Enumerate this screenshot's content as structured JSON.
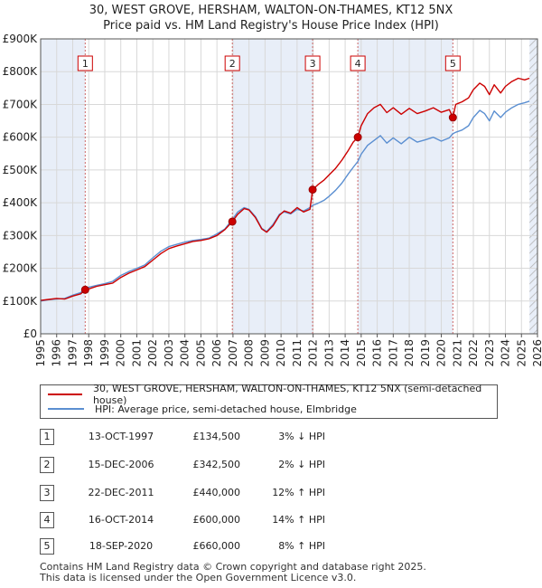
{
  "title_line1": "30, WEST GROVE, HERSHAM, WALTON-ON-THAMES, KT12 5NX",
  "title_line2": "Price paid vs. HM Land Registry's House Price Index (HPI)",
  "chart_data": {
    "type": "line",
    "title": "30, WEST GROVE, HERSHAM, WALTON-ON-THAMES, KT12 5NX",
    "subtitle": "Price paid vs. HM Land Registry's House Price Index (HPI)",
    "xlim": [
      1995,
      2026
    ],
    "ylim": [
      0,
      900000
    ],
    "x_ticks": [
      "1995",
      "1996",
      "1997",
      "1998",
      "1999",
      "2000",
      "2001",
      "2002",
      "2003",
      "2004",
      "2005",
      "2006",
      "2007",
      "2008",
      "2009",
      "2010",
      "2011",
      "2012",
      "2013",
      "2014",
      "2015",
      "2016",
      "2017",
      "2018",
      "2019",
      "2020",
      "2021",
      "2022",
      "2023",
      "2024",
      "2025",
      "2026"
    ],
    "y_ticks": [
      {
        "value": 0,
        "label": "£0"
      },
      {
        "value": 100000,
        "label": "£100K"
      },
      {
        "value": 200000,
        "label": "£200K"
      },
      {
        "value": 300000,
        "label": "£300K"
      },
      {
        "value": 400000,
        "label": "£400K"
      },
      {
        "value": 500000,
        "label": "£500K"
      },
      {
        "value": 600000,
        "label": "£600K"
      },
      {
        "value": 700000,
        "label": "£700K"
      },
      {
        "value": 800000,
        "label": "£800K"
      },
      {
        "value": 900000,
        "label": "£900K"
      }
    ],
    "series": [
      {
        "name": "30, WEST GROVE, HERSHAM, WALTON-ON-THAMES, KT12 5NX (semi-detached house)",
        "color": "#cc0000",
        "points": [
          [
            1995.0,
            102000
          ],
          [
            1995.5,
            105000
          ],
          [
            1996.0,
            108000
          ],
          [
            1996.5,
            106000
          ],
          [
            1997.0,
            115000
          ],
          [
            1997.5,
            122000
          ],
          [
            1997.78,
            134500
          ],
          [
            1998.0,
            137000
          ],
          [
            1998.5,
            145000
          ],
          [
            1999.0,
            150000
          ],
          [
            1999.5,
            155000
          ],
          [
            2000.0,
            172000
          ],
          [
            2000.5,
            185000
          ],
          [
            2001.0,
            195000
          ],
          [
            2001.5,
            205000
          ],
          [
            2002.0,
            225000
          ],
          [
            2002.5,
            245000
          ],
          [
            2003.0,
            260000
          ],
          [
            2003.5,
            268000
          ],
          [
            2004.0,
            275000
          ],
          [
            2004.5,
            282000
          ],
          [
            2005.0,
            285000
          ],
          [
            2005.5,
            290000
          ],
          [
            2006.0,
            300000
          ],
          [
            2006.5,
            318000
          ],
          [
            2006.96,
            342500
          ],
          [
            2007.3,
            365000
          ],
          [
            2007.7,
            382000
          ],
          [
            2008.0,
            378000
          ],
          [
            2008.4,
            355000
          ],
          [
            2008.8,
            320000
          ],
          [
            2009.1,
            310000
          ],
          [
            2009.5,
            330000
          ],
          [
            2009.9,
            362000
          ],
          [
            2010.2,
            375000
          ],
          [
            2010.6,
            368000
          ],
          [
            2011.0,
            385000
          ],
          [
            2011.4,
            372000
          ],
          [
            2011.8,
            380000
          ],
          [
            2011.97,
            440000
          ],
          [
            2012.3,
            455000
          ],
          [
            2012.7,
            470000
          ],
          [
            2013.0,
            485000
          ],
          [
            2013.4,
            505000
          ],
          [
            2013.8,
            530000
          ],
          [
            2014.2,
            560000
          ],
          [
            2014.5,
            585000
          ],
          [
            2014.79,
            600000
          ],
          [
            2015.0,
            635000
          ],
          [
            2015.4,
            672000
          ],
          [
            2015.8,
            690000
          ],
          [
            2016.2,
            700000
          ],
          [
            2016.6,
            675000
          ],
          [
            2017.0,
            690000
          ],
          [
            2017.5,
            670000
          ],
          [
            2018.0,
            688000
          ],
          [
            2018.5,
            672000
          ],
          [
            2019.0,
            680000
          ],
          [
            2019.5,
            690000
          ],
          [
            2020.0,
            676000
          ],
          [
            2020.5,
            684000
          ],
          [
            2020.72,
            660000
          ],
          [
            2020.9,
            700000
          ],
          [
            2021.3,
            708000
          ],
          [
            2021.7,
            720000
          ],
          [
            2022.0,
            745000
          ],
          [
            2022.4,
            765000
          ],
          [
            2022.7,
            755000
          ],
          [
            2023.0,
            730000
          ],
          [
            2023.3,
            760000
          ],
          [
            2023.7,
            735000
          ],
          [
            2024.0,
            755000
          ],
          [
            2024.4,
            770000
          ],
          [
            2024.8,
            780000
          ],
          [
            2025.2,
            775000
          ],
          [
            2025.5,
            780000
          ]
        ]
      },
      {
        "name": "HPI: Average price, semi-detached house, Elmbridge",
        "color": "#5b8fd1",
        "points": [
          [
            1995.0,
            100000
          ],
          [
            1995.5,
            104000
          ],
          [
            1996.0,
            106000
          ],
          [
            1996.5,
            108000
          ],
          [
            1997.0,
            118000
          ],
          [
            1997.5,
            126000
          ],
          [
            1997.78,
            139000
          ],
          [
            1998.0,
            142000
          ],
          [
            1998.5,
            148000
          ],
          [
            1999.0,
            153000
          ],
          [
            1999.5,
            160000
          ],
          [
            2000.0,
            178000
          ],
          [
            2000.5,
            190000
          ],
          [
            2001.0,
            200000
          ],
          [
            2001.5,
            210000
          ],
          [
            2002.0,
            232000
          ],
          [
            2002.5,
            252000
          ],
          [
            2003.0,
            266000
          ],
          [
            2003.5,
            273000
          ],
          [
            2004.0,
            280000
          ],
          [
            2004.5,
            285000
          ],
          [
            2005.0,
            288000
          ],
          [
            2005.5,
            292000
          ],
          [
            2006.0,
            305000
          ],
          [
            2006.5,
            320000
          ],
          [
            2006.96,
            349000
          ],
          [
            2007.3,
            372000
          ],
          [
            2007.7,
            385000
          ],
          [
            2008.0,
            380000
          ],
          [
            2008.4,
            358000
          ],
          [
            2008.8,
            322000
          ],
          [
            2009.1,
            312000
          ],
          [
            2009.5,
            334000
          ],
          [
            2009.9,
            365000
          ],
          [
            2010.2,
            372000
          ],
          [
            2010.6,
            366000
          ],
          [
            2011.0,
            380000
          ],
          [
            2011.4,
            375000
          ],
          [
            2011.8,
            385000
          ],
          [
            2011.97,
            392000
          ],
          [
            2012.3,
            398000
          ],
          [
            2012.7,
            408000
          ],
          [
            2013.0,
            420000
          ],
          [
            2013.4,
            438000
          ],
          [
            2013.8,
            460000
          ],
          [
            2014.2,
            488000
          ],
          [
            2014.5,
            508000
          ],
          [
            2014.79,
            526000
          ],
          [
            2015.0,
            548000
          ],
          [
            2015.4,
            575000
          ],
          [
            2015.8,
            590000
          ],
          [
            2016.2,
            605000
          ],
          [
            2016.6,
            582000
          ],
          [
            2017.0,
            598000
          ],
          [
            2017.5,
            580000
          ],
          [
            2018.0,
            600000
          ],
          [
            2018.5,
            585000
          ],
          [
            2019.0,
            592000
          ],
          [
            2019.5,
            600000
          ],
          [
            2020.0,
            588000
          ],
          [
            2020.5,
            598000
          ],
          [
            2020.72,
            611000
          ],
          [
            2020.9,
            615000
          ],
          [
            2021.3,
            622000
          ],
          [
            2021.7,
            635000
          ],
          [
            2022.0,
            660000
          ],
          [
            2022.4,
            682000
          ],
          [
            2022.7,
            672000
          ],
          [
            2023.0,
            650000
          ],
          [
            2023.3,
            680000
          ],
          [
            2023.7,
            660000
          ],
          [
            2024.0,
            676000
          ],
          [
            2024.4,
            690000
          ],
          [
            2024.8,
            700000
          ],
          [
            2025.2,
            705000
          ],
          [
            2025.5,
            710000
          ]
        ]
      }
    ],
    "transactions": [
      {
        "id": "1",
        "x": 1997.78,
        "price": 134500
      },
      {
        "id": "2",
        "x": 2006.96,
        "price": 342500
      },
      {
        "id": "3",
        "x": 2011.97,
        "price": 440000
      },
      {
        "id": "4",
        "x": 2014.79,
        "price": 600000
      },
      {
        "id": "5",
        "x": 2020.72,
        "price": 660000
      }
    ],
    "shaded_periods": [
      [
        1995.0,
        1997.78
      ],
      [
        2006.96,
        2011.97
      ],
      [
        2014.79,
        2020.72
      ],
      [
        2025.5,
        2026.0
      ]
    ],
    "hatched_from": 2025.5
  },
  "legend": {
    "red_label": "30, WEST GROVE, HERSHAM, WALTON-ON-THAMES, KT12 5NX (semi-detached house)",
    "blue_label": "HPI: Average price, semi-detached house, Elmbridge",
    "red_color": "#cc0000",
    "blue_color": "#5b8fd1"
  },
  "transactions_table": [
    {
      "num": "1",
      "date": "13-OCT-1997",
      "price": "£134,500",
      "hpi": "3% ↓ HPI"
    },
    {
      "num": "2",
      "date": "15-DEC-2006",
      "price": "£342,500",
      "hpi": "2% ↓ HPI"
    },
    {
      "num": "3",
      "date": "22-DEC-2011",
      "price": "£440,000",
      "hpi": "12% ↑ HPI"
    },
    {
      "num": "4",
      "date": "16-OCT-2014",
      "price": "£600,000",
      "hpi": "14% ↑ HPI"
    },
    {
      "num": "5",
      "date": "18-SEP-2020",
      "price": "£660,000",
      "hpi": "8% ↑ HPI"
    }
  ],
  "footer": {
    "line1": "Contains HM Land Registry data © Crown copyright and database right 2025.",
    "line2": "This data is licensed under the Open Government Licence v3.0."
  }
}
